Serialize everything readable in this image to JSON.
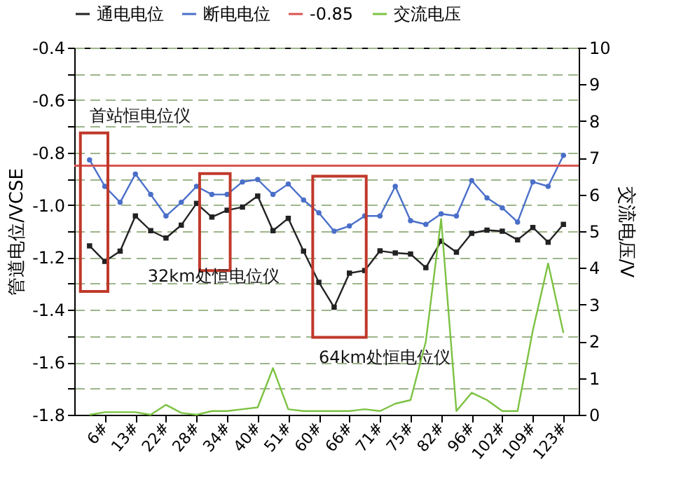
{
  "chart_data": {
    "type": "line",
    "categories": [
      null,
      "6#",
      null,
      "13#",
      null,
      "22#",
      null,
      "28#",
      null,
      "34#",
      null,
      "40#",
      null,
      "51#",
      null,
      "60#",
      null,
      "66#",
      null,
      "71#",
      null,
      "75#",
      null,
      "82#",
      null,
      "96#",
      null,
      "102#",
      null,
      "109#",
      null,
      "123#"
    ],
    "series": [
      {
        "name": "通电电位",
        "color": "#222222",
        "marker": "square",
        "values": [
          -1.156,
          -1.215,
          -1.176,
          -1.042,
          -1.098,
          -1.126,
          -1.077,
          -0.994,
          -1.046,
          -1.02,
          -1.008,
          -0.966,
          -1.098,
          -1.051,
          -1.176,
          -1.295,
          -1.39,
          -1.26,
          -1.25,
          -1.175,
          -1.183,
          -1.187,
          -1.239,
          -1.138,
          -1.18,
          -1.108,
          -1.096,
          -1.1,
          -1.133,
          -1.086,
          -1.142,
          -1.074
        ]
      },
      {
        "name": "断电电位",
        "color": "#4a6fc9",
        "marker": "circle",
        "values": [
          -0.828,
          -0.929,
          -0.99,
          -0.882,
          -0.96,
          -1.042,
          -0.99,
          -0.929,
          -0.96,
          -0.96,
          -0.912,
          -0.903,
          -0.96,
          -0.92,
          -0.981,
          -1.03,
          -1.1,
          -1.08,
          -1.042,
          -1.042,
          -0.929,
          -1.06,
          -1.074,
          -1.034,
          -1.042,
          -0.907,
          -0.973,
          -1.011,
          -1.065,
          -0.912,
          -0.929,
          -0.811
        ]
      },
      {
        "name": "交流电压",
        "color": "#7cc242",
        "marker": "none",
        "axis": "y2",
        "values": [
          0,
          0.07,
          0.07,
          0.07,
          0,
          0.27,
          0.05,
          0,
          0.1,
          0.1,
          0.15,
          0.2,
          1.27,
          0.15,
          0.1,
          0.1,
          0.1,
          0.1,
          0.15,
          0.1,
          0.3,
          0.4,
          2.0,
          5.33,
          0.1,
          0.6,
          0.4,
          0.1,
          0.1,
          2.3,
          4.12,
          2.23
        ]
      }
    ],
    "ref_lines": [
      {
        "axis": "y",
        "value": -0.85,
        "label": "-0.85",
        "color": "#d9534f"
      }
    ],
    "ylabel": "管道电位/VCSE",
    "y2label": "交流电压/V",
    "ylim": [
      -1.8,
      -0.4
    ],
    "yticks": [
      -1.8,
      {
        "value": -1.7,
        "label": null
      },
      -1.6,
      {
        "value": -1.5,
        "label": null
      },
      -1.4,
      {
        "value": -1.3,
        "label": null
      },
      -1.2,
      {
        "value": -1.1,
        "label": null
      },
      {
        "value": -1,
        "label": "-1.0"
      },
      {
        "value": -0.9,
        "label": null
      },
      -0.8,
      {
        "value": -0.7,
        "label": null
      },
      -0.6,
      {
        "value": -0.5,
        "label": null
      },
      -0.4
    ],
    "y2lim": [
      0,
      10
    ],
    "y2ticks": [
      0,
      1,
      2,
      3,
      4,
      5,
      6,
      7,
      8,
      9,
      10
    ],
    "grid": "y",
    "legend": "top",
    "annotations": [
      "首站恒电位仪",
      "32km处恒电位仪",
      "64km处恒电位仪"
    ]
  }
}
